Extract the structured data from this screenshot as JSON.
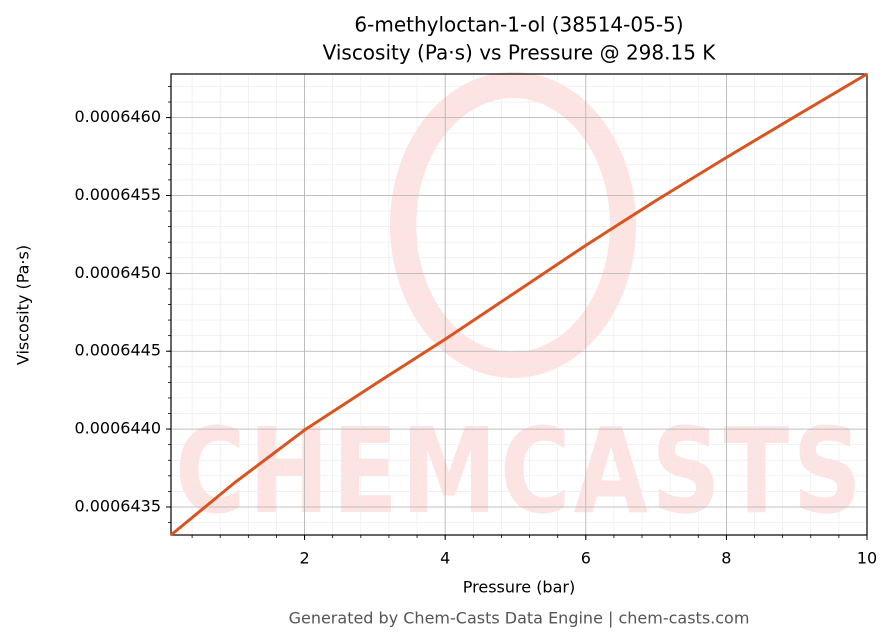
{
  "chart_data": {
    "type": "line",
    "title": "6-methyloctan-1-ol (38514-05-5)",
    "subtitle": "Viscosity (Pa·s) vs Pressure @ 298.15 K",
    "x_label": "Pressure (bar)",
    "y_label": "Viscosity (Pa·s)",
    "footer": "Generated by Chem-Casts Data Engine | chem-casts.com",
    "watermark": "CHEMCASTS",
    "x": [
      0.1,
      1,
      2,
      3,
      4,
      5,
      6,
      7,
      8,
      9,
      10
    ],
    "series": [
      {
        "name": "Viscosity",
        "color": "#d9541f",
        "values": [
          0.00064332,
          0.000643654,
          0.000643994,
          0.000644288,
          0.000644577,
          0.000644878,
          0.00064518,
          0.000645468,
          0.000645744,
          0.000646013,
          0.00064628
        ]
      }
    ],
    "xlim": [
      0.1,
      10
    ],
    "ylim": [
      0.00064332,
      0.00064628
    ],
    "xticks": [
      2,
      4,
      6,
      8,
      10
    ],
    "yticks": [
      {
        "value": 0.0006435,
        "label": "0.0006435"
      },
      {
        "value": 0.000644,
        "label": "0.0006440"
      },
      {
        "value": 0.0006445,
        "label": "0.0006445"
      },
      {
        "value": 0.000645,
        "label": "0.0006450"
      },
      {
        "value": 0.0006455,
        "label": "0.0006455"
      },
      {
        "value": 0.000646,
        "label": "0.0006460"
      }
    ],
    "grid": true,
    "minor_grid": true
  }
}
